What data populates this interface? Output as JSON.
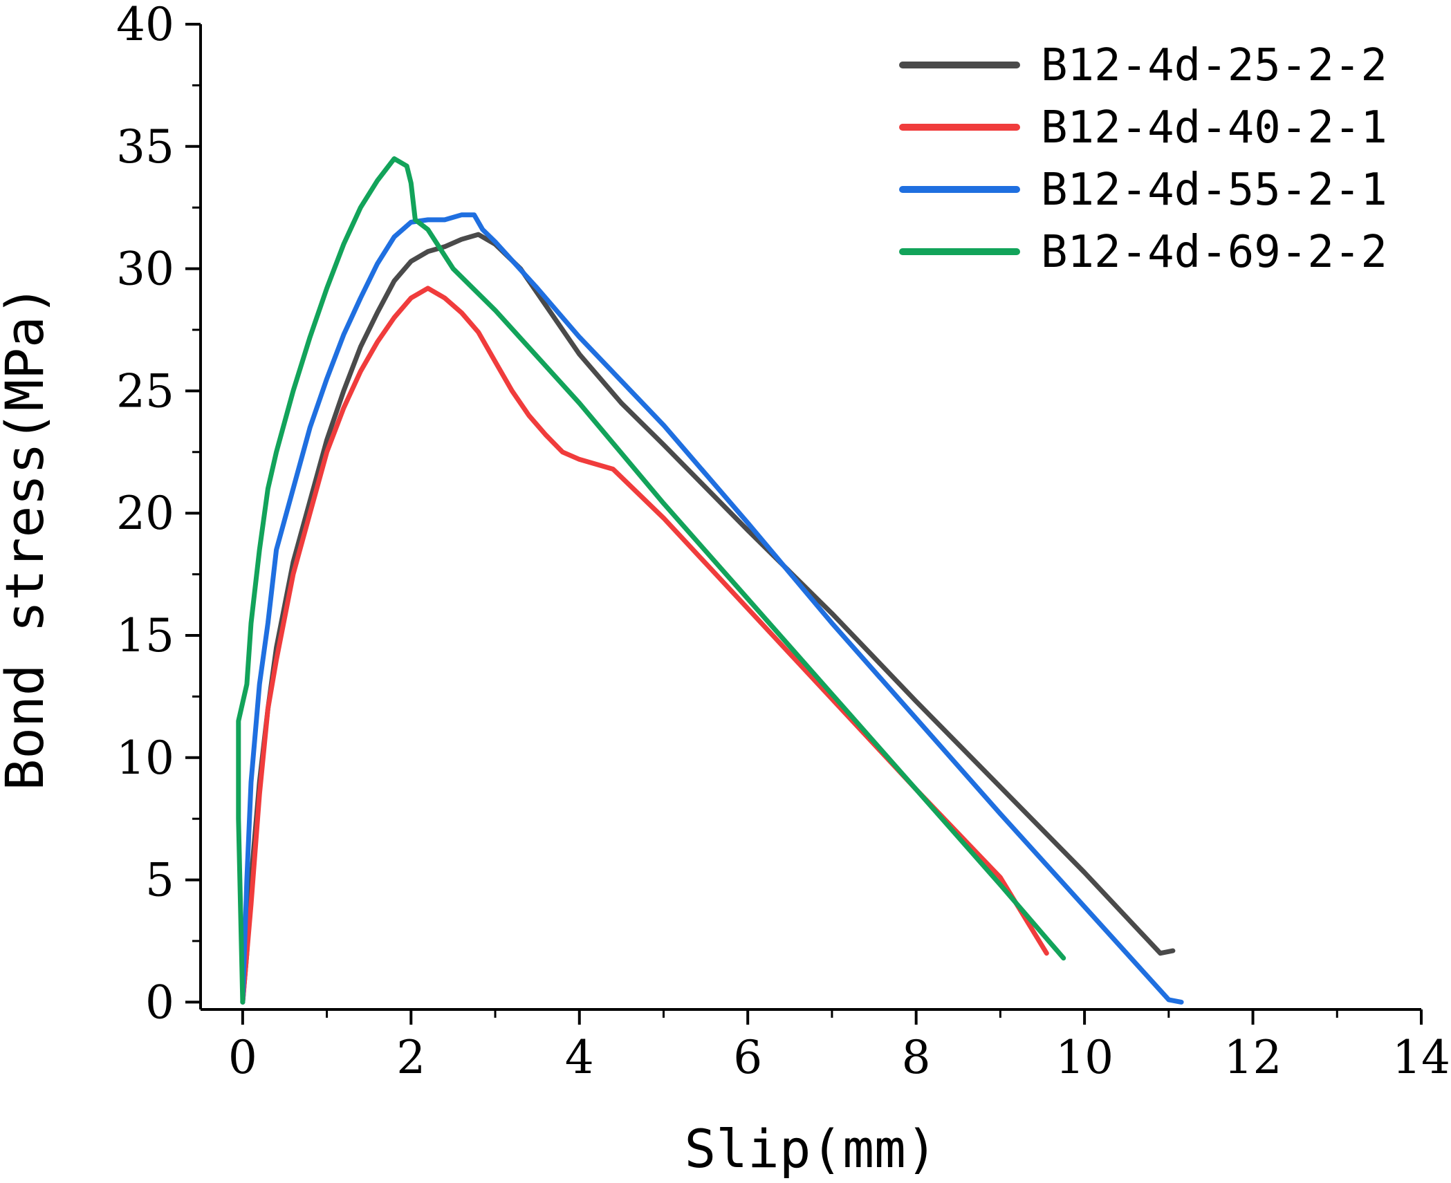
{
  "chart_data": {
    "type": "line",
    "title": "",
    "xlabel": "Slip(mm)",
    "ylabel": "Bond stress(MPa)",
    "xlim": [
      -0.5,
      14
    ],
    "ylim": [
      -0.3,
      40
    ],
    "xticks": [
      0,
      2,
      4,
      6,
      8,
      10,
      12,
      14
    ],
    "yticks": [
      0,
      5,
      10,
      15,
      20,
      25,
      30,
      35,
      40
    ],
    "grid": false,
    "legend_position": "top-right",
    "series": [
      {
        "name": "B12-4d-25-2-2",
        "color": "#4a4a4a",
        "points": [
          [
            0,
            0
          ],
          [
            0.05,
            2
          ],
          [
            0.1,
            5
          ],
          [
            0.2,
            9
          ],
          [
            0.3,
            12
          ],
          [
            0.4,
            14.5
          ],
          [
            0.6,
            18
          ],
          [
            0.8,
            20.5
          ],
          [
            1.0,
            23
          ],
          [
            1.2,
            25
          ],
          [
            1.4,
            26.8
          ],
          [
            1.6,
            28.2
          ],
          [
            1.8,
            29.5
          ],
          [
            2.0,
            30.3
          ],
          [
            2.2,
            30.7
          ],
          [
            2.4,
            30.9
          ],
          [
            2.6,
            31.2
          ],
          [
            2.8,
            31.4
          ],
          [
            3.0,
            31.0
          ],
          [
            3.3,
            30.0
          ],
          [
            3.6,
            28.5
          ],
          [
            4.0,
            26.5
          ],
          [
            4.5,
            24.5
          ],
          [
            5.0,
            22.8
          ],
          [
            6.0,
            19.3
          ],
          [
            7.0,
            15.9
          ],
          [
            8.0,
            12.3
          ],
          [
            9.0,
            8.8
          ],
          [
            10.0,
            5.3
          ],
          [
            10.9,
            2.0
          ],
          [
            11.05,
            2.1
          ]
        ]
      },
      {
        "name": "B12-4d-40-2-1",
        "color": "#f03c3c",
        "points": [
          [
            0,
            0
          ],
          [
            0.1,
            4
          ],
          [
            0.2,
            8.5
          ],
          [
            0.3,
            12
          ],
          [
            0.4,
            14
          ],
          [
            0.6,
            17.5
          ],
          [
            0.8,
            20
          ],
          [
            1.0,
            22.5
          ],
          [
            1.2,
            24.3
          ],
          [
            1.4,
            25.8
          ],
          [
            1.6,
            27.0
          ],
          [
            1.8,
            28.0
          ],
          [
            2.0,
            28.8
          ],
          [
            2.2,
            29.2
          ],
          [
            2.4,
            28.8
          ],
          [
            2.6,
            28.2
          ],
          [
            2.8,
            27.4
          ],
          [
            3.0,
            26.2
          ],
          [
            3.2,
            25.0
          ],
          [
            3.4,
            24.0
          ],
          [
            3.6,
            23.2
          ],
          [
            3.8,
            22.5
          ],
          [
            4.0,
            22.2
          ],
          [
            4.4,
            21.8
          ],
          [
            5.0,
            19.8
          ],
          [
            6.0,
            16.1
          ],
          [
            7.0,
            12.4
          ],
          [
            8.0,
            8.7
          ],
          [
            9.0,
            5.1
          ],
          [
            9.55,
            2.0
          ]
        ]
      },
      {
        "name": "B12-4d-55-2-1",
        "color": "#1f6fe0",
        "points": [
          [
            0,
            0
          ],
          [
            0.05,
            5
          ],
          [
            0.1,
            9
          ],
          [
            0.2,
            13
          ],
          [
            0.3,
            15.5
          ],
          [
            0.4,
            18.5
          ],
          [
            0.6,
            21
          ],
          [
            0.8,
            23.5
          ],
          [
            1.0,
            25.5
          ],
          [
            1.2,
            27.3
          ],
          [
            1.4,
            28.8
          ],
          [
            1.6,
            30.2
          ],
          [
            1.8,
            31.3
          ],
          [
            2.0,
            31.9
          ],
          [
            2.2,
            32.0
          ],
          [
            2.4,
            32.0
          ],
          [
            2.6,
            32.2
          ],
          [
            2.75,
            32.2
          ],
          [
            2.85,
            31.6
          ],
          [
            3.0,
            31.1
          ],
          [
            3.5,
            29.2
          ],
          [
            4.0,
            27.2
          ],
          [
            5.0,
            23.6
          ],
          [
            6.0,
            19.6
          ],
          [
            7.0,
            15.5
          ],
          [
            8.0,
            11.6
          ],
          [
            9.0,
            7.7
          ],
          [
            10.0,
            3.9
          ],
          [
            11.0,
            0.1
          ],
          [
            11.15,
            0
          ]
        ]
      },
      {
        "name": "B12-4d-69-2-2",
        "color": "#12a35a",
        "points": [
          [
            0,
            0
          ],
          [
            -0.05,
            7.5
          ],
          [
            -0.05,
            11.5
          ],
          [
            0.05,
            13
          ],
          [
            0.1,
            15.5
          ],
          [
            0.2,
            18.5
          ],
          [
            0.3,
            21
          ],
          [
            0.4,
            22.5
          ],
          [
            0.6,
            25
          ],
          [
            0.8,
            27.2
          ],
          [
            1.0,
            29.2
          ],
          [
            1.2,
            31.0
          ],
          [
            1.4,
            32.5
          ],
          [
            1.6,
            33.6
          ],
          [
            1.8,
            34.5
          ],
          [
            1.95,
            34.2
          ],
          [
            2.0,
            33.5
          ],
          [
            2.05,
            32.0
          ],
          [
            2.2,
            31.6
          ],
          [
            2.5,
            30.0
          ],
          [
            3.0,
            28.3
          ],
          [
            4.0,
            24.5
          ],
          [
            5.0,
            20.4
          ],
          [
            6.0,
            16.5
          ],
          [
            7.0,
            12.6
          ],
          [
            8.0,
            8.7
          ],
          [
            9.0,
            4.8
          ],
          [
            9.75,
            1.8
          ]
        ]
      }
    ]
  }
}
